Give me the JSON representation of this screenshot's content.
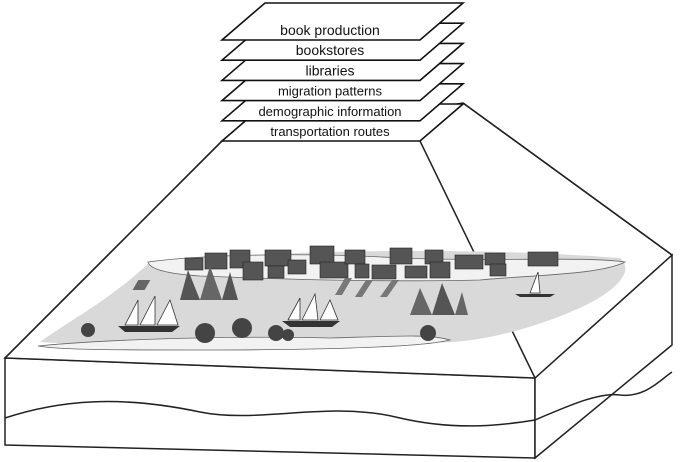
{
  "layers": [
    "book production",
    "bookstores",
    "libraries",
    "migration patterns",
    "demographic information",
    "transportation routes"
  ]
}
